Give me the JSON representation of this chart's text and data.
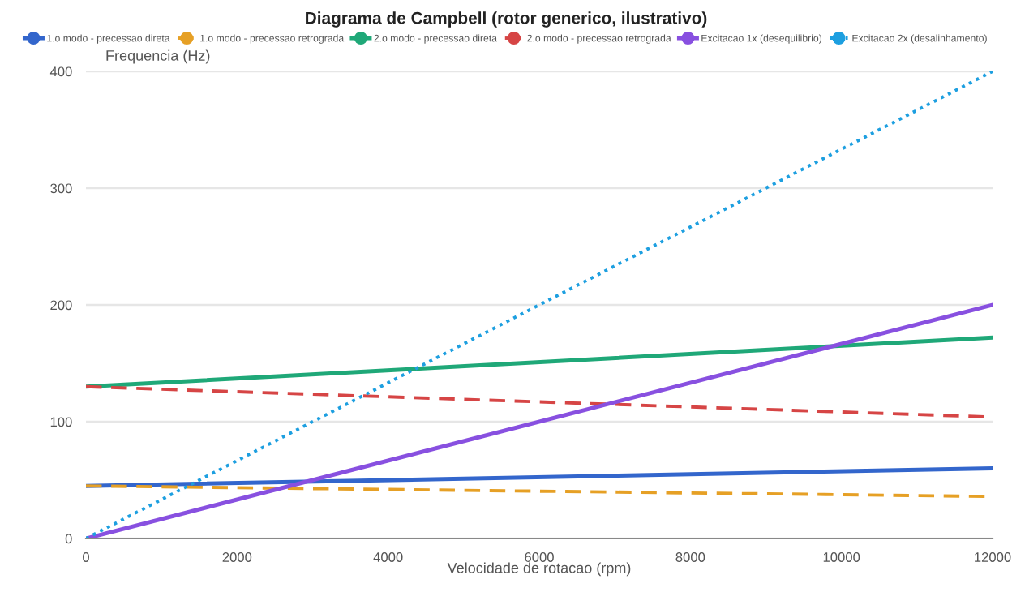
{
  "chart_data": {
    "type": "line",
    "title": "Diagrama de Campbell (rotor generico, ilustrativo)",
    "xlabel": "Velocidade de rotacao (rpm)",
    "ylabel": "Frequencia (Hz)",
    "x": [
      0,
      12000
    ],
    "series": [
      {
        "name": "1.o modo - precessao direta",
        "color": "#3366cc",
        "values": [
          45,
          60
        ],
        "line_style": "solid"
      },
      {
        "name": "1.o modo - precessao retrograda",
        "color": "#e6a025",
        "values": [
          45,
          36
        ],
        "line_style": "dashed"
      },
      {
        "name": "2.o modo - precessao direta",
        "color": "#1fa878",
        "values": [
          130,
          172
        ],
        "line_style": "solid"
      },
      {
        "name": "2.o modo - precessao retrograda",
        "color": "#d64545",
        "values": [
          130,
          104
        ],
        "line_style": "dashed"
      },
      {
        "name": "Excitacao 1x (desequilibrio)",
        "color": "#8850e0",
        "values": [
          0,
          200
        ],
        "line_style": "solid"
      },
      {
        "name": "Excitacao 2x (desalinhamento)",
        "color": "#1d9fe0",
        "values": [
          0,
          400
        ],
        "line_style": "dotted"
      }
    ],
    "xlim": [
      0,
      12000
    ],
    "ylim": [
      0,
      400
    ],
    "xticks": [
      0,
      2000,
      4000,
      6000,
      8000,
      10000,
      12000
    ],
    "yticks": [
      0,
      100,
      200,
      300,
      400
    ],
    "grid": "y",
    "legend": "top",
    "marker": "none"
  }
}
